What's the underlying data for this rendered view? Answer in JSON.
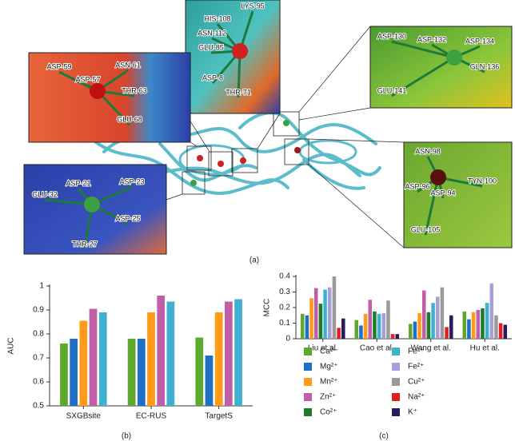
{
  "panel_a": {
    "label": "(a)",
    "insets": [
      {
        "labels": [
          "LYS-95",
          "HIS-108",
          "ASN-112",
          "GLU-85",
          "ASP-8",
          "THR-71"
        ]
      },
      {
        "labels": [
          "ASP-59",
          "ASN-61",
          "ASP-57",
          "THR-63",
          "GLU-68"
        ]
      },
      {
        "labels": [
          "ASP-21",
          "ASP-23",
          "GLU-32",
          "ASP-25",
          "THR-27"
        ]
      },
      {
        "labels": [
          "ASP-130",
          "ASP-132",
          "ASP-134",
          "GLN-136",
          "GLU-141"
        ]
      },
      {
        "labels": [
          "ASN-98",
          "TYN-100",
          "ASP-96",
          "ASP-94",
          "GLU-105"
        ]
      }
    ]
  },
  "chart_data": [
    {
      "type": "bar",
      "panel_label": "(b)",
      "y_label": "AUC",
      "categories": [
        "SXGBsite",
        "EC-RUS",
        "TargetS"
      ],
      "series": [
        {
          "color": "#5fa82e",
          "values": [
            0.76,
            0.78,
            0.785
          ]
        },
        {
          "color": "#1f6fc5",
          "values": [
            0.78,
            0.78,
            0.71
          ]
        },
        {
          "color": "#ff9a1a",
          "values": [
            0.855,
            0.89,
            0.89
          ]
        },
        {
          "color": "#c05fa8",
          "values": [
            0.905,
            0.96,
            0.935
          ]
        },
        {
          "color": "#3fb0d0",
          "values": [
            0.89,
            0.935,
            0.945
          ]
        }
      ],
      "ylim": [
        0.5,
        1
      ],
      "yticks": [
        0.5,
        0.6,
        0.7,
        0.8,
        0.9,
        1
      ]
    },
    {
      "type": "bar",
      "panel_label": "(c)",
      "y_label": "MCC",
      "categories": [
        "Liu et al.",
        "Cao et al.",
        "Wang et al.",
        "Hu et al."
      ],
      "series": [
        {
          "name": "Ca²⁺",
          "color": "#5fa82e",
          "values": [
            0.16,
            0.12,
            0.095,
            0.175
          ]
        },
        {
          "name": "Mg²⁺",
          "color": "#1f6fc5",
          "values": [
            0.15,
            0.085,
            0.11,
            0.125
          ]
        },
        {
          "name": "Mn²⁺",
          "color": "#ff9a1a",
          "values": [
            0.26,
            0.16,
            0.165,
            0.17
          ]
        },
        {
          "name": "Zn²⁺",
          "color": "#c05fa8",
          "values": [
            0.325,
            0.25,
            0.31,
            0.185
          ]
        },
        {
          "name": "Co²⁺",
          "color": "#1e7b2a",
          "values": [
            0.225,
            0.175,
            0.17,
            0.195
          ]
        },
        {
          "name": "Fe²⁺",
          "color": "#3fb0d0",
          "values": [
            0.315,
            0.16,
            0.23,
            0.23
          ]
        },
        {
          "name": "Fe²⁺",
          "color": "#a99fd8",
          "values": [
            0.33,
            0.165,
            0.27,
            0.355
          ]
        },
        {
          "name": "Cu²⁺",
          "color": "#9a9a9a",
          "values": [
            0.4,
            0.245,
            0.33,
            0.15
          ]
        },
        {
          "name": "Na²⁺",
          "color": "#e02020",
          "values": [
            0.07,
            0.03,
            0.075,
            0.1
          ]
        },
        {
          "name": "K⁺",
          "color": "#2a1a5e",
          "values": [
            0.13,
            0.03,
            0.15,
            0.09
          ]
        }
      ],
      "ylim": [
        0,
        0.4
      ],
      "yticks": [
        0,
        0.1,
        0.2,
        0.3,
        0.4
      ]
    }
  ]
}
